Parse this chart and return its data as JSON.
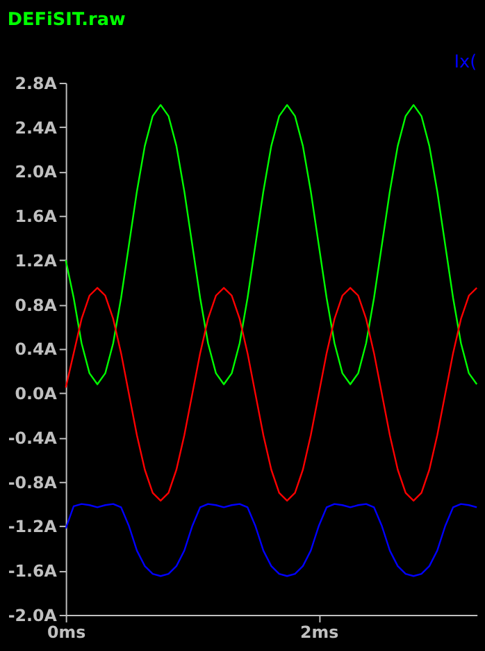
{
  "chart_data": {
    "type": "line",
    "title": "DEFiSIT.raw",
    "x": [
      0,
      0.0625,
      0.125,
      0.1875,
      0.25,
      0.3125,
      0.375,
      0.4375,
      0.5,
      0.5625,
      0.625,
      0.6875,
      0.75,
      0.8125,
      0.875,
      0.9375,
      1,
      1.0625,
      1.125,
      1.1875,
      1.25,
      1.3125,
      1.375,
      1.4375,
      1.5,
      1.5625,
      1.625,
      1.6875,
      1.75,
      1.8125,
      1.875,
      1.9375,
      2,
      2.0625,
      2.125,
      2.1875,
      2.25,
      2.3125,
      2.375,
      2.4375,
      2.5,
      2.5625,
      2.625,
      2.6875,
      2.75,
      2.8125,
      2.875,
      2.9375,
      3,
      3.0625,
      3.125,
      3.1875,
      3.25
    ],
    "series": [
      {
        "color": "#00ff00",
        "values": [
          1.2,
          0.86,
          0.45,
          0.18,
          0.08,
          0.18,
          0.45,
          0.86,
          1.34,
          1.82,
          2.23,
          2.5,
          2.6,
          2.5,
          2.23,
          1.82,
          1.34,
          0.86,
          0.45,
          0.18,
          0.08,
          0.18,
          0.45,
          0.86,
          1.34,
          1.82,
          2.23,
          2.5,
          2.6,
          2.5,
          2.23,
          1.82,
          1.34,
          0.86,
          0.45,
          0.18,
          0.08,
          0.18,
          0.45,
          0.86,
          1.34,
          1.82,
          2.23,
          2.5,
          2.6,
          2.5,
          2.23,
          1.82,
          1.34,
          0.86,
          0.45,
          0.18,
          0.08
        ]
      },
      {
        "color": "#ff0000",
        "values": [
          0.05,
          0.36,
          0.67,
          0.88,
          0.95,
          0.88,
          0.67,
          0.36,
          -0.01,
          -0.38,
          -0.69,
          -0.9,
          -0.97,
          -0.9,
          -0.69,
          -0.38,
          -0.01,
          0.36,
          0.67,
          0.88,
          0.95,
          0.88,
          0.67,
          0.36,
          -0.01,
          -0.38,
          -0.69,
          -0.9,
          -0.97,
          -0.9,
          -0.69,
          -0.38,
          -0.01,
          0.36,
          0.67,
          0.88,
          0.95,
          0.88,
          0.67,
          0.36,
          -0.01,
          -0.38,
          -0.69,
          -0.9,
          -0.97,
          -0.9,
          -0.69,
          -0.38,
          -0.01,
          0.36,
          0.67,
          0.88,
          0.95
        ]
      },
      {
        "name": "Ix(",
        "color": "#0000ff",
        "values": [
          -1.22,
          -1.02,
          -1.0,
          -1.01,
          -1.03,
          -1.01,
          -1.0,
          -1.03,
          -1.2,
          -1.42,
          -1.56,
          -1.63,
          -1.65,
          -1.63,
          -1.56,
          -1.42,
          -1.2,
          -1.03,
          -1.0,
          -1.01,
          -1.03,
          -1.01,
          -1.0,
          -1.03,
          -1.2,
          -1.42,
          -1.56,
          -1.63,
          -1.65,
          -1.63,
          -1.56,
          -1.42,
          -1.2,
          -1.03,
          -1.0,
          -1.01,
          -1.03,
          -1.01,
          -1.0,
          -1.03,
          -1.2,
          -1.42,
          -1.56,
          -1.63,
          -1.65,
          -1.63,
          -1.56,
          -1.42,
          -1.2,
          -1.03,
          -1.0,
          -1.01,
          -1.03
        ]
      }
    ],
    "xlim": [
      0,
      3.25
    ],
    "xticks": [
      {
        "value": 0,
        "label": "0ms"
      },
      {
        "value": 2,
        "label": "2ms"
      }
    ],
    "ylim": [
      -2.0,
      2.8
    ],
    "yticks": [
      {
        "value": 2.8,
        "label": "2.8A"
      },
      {
        "value": 2.4,
        "label": "2.4A"
      },
      {
        "value": 2.0,
        "label": "2.0A"
      },
      {
        "value": 1.6,
        "label": "1.6A"
      },
      {
        "value": 1.2,
        "label": "1.2A"
      },
      {
        "value": 0.8,
        "label": "0.8A"
      },
      {
        "value": 0.4,
        "label": "0.4A"
      },
      {
        "value": 0.0,
        "label": "0.0A"
      },
      {
        "value": -0.4,
        "label": "-0.4A"
      },
      {
        "value": -0.8,
        "label": "-0.8A"
      },
      {
        "value": -1.2,
        "label": "-1.2A"
      },
      {
        "value": -1.6,
        "label": "-1.6A"
      },
      {
        "value": -2.0,
        "label": "-2.0A"
      }
    ],
    "grid": false,
    "legend": "top right",
    "marker": "none",
    "line_style": "solid"
  }
}
